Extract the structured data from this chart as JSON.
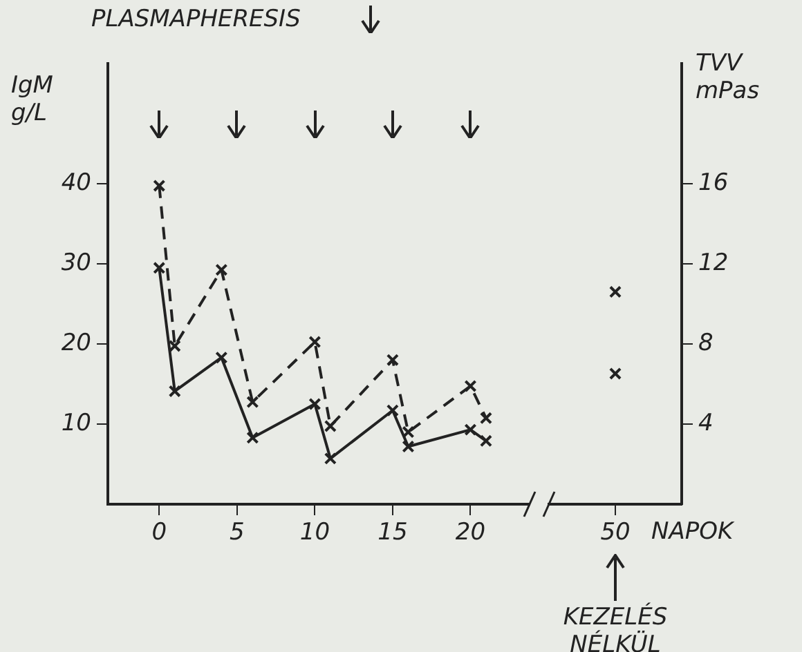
{
  "chart_data": [
    {
      "type": "line",
      "ylabel": "IgM g/L",
      "x": [
        0,
        1,
        4,
        6,
        10,
        11,
        15,
        16,
        20,
        21
      ],
      "series": [
        {
          "color": "#222222",
          "line_style": "solid",
          "values": [
            29.5,
            14.1,
            18.3,
            8.3,
            12.5,
            5.7,
            11.7,
            7.2,
            9.3,
            7.9
          ]
        },
        {
          "color": "#222222",
          "line_style": "dashed",
          "axis": "y2",
          "values": [
            15.9,
            7.9,
            11.7,
            5.1,
            8.1,
            3.9,
            7.2,
            3.6,
            5.9,
            4.3
          ]
        }
      ],
      "xlim": [
        -3.3,
        23.8
      ],
      "xticks": [
        0,
        5,
        10,
        15,
        20
      ],
      "ylim": [
        0,
        55
      ],
      "yticks": [
        10,
        20,
        30,
        40
      ],
      "y2lim": [
        0,
        22
      ],
      "tick_labels": "xy",
      "marker": "cross",
      "grid": false,
      "legend": false,
      "annotations": [
        "PLASMAPHERESIS"
      ]
    },
    {
      "type": "line",
      "xlabel": "NAPOK",
      "y2label": "TVV mPas",
      "categories": [
        "50"
      ],
      "series": [
        {
          "color": "#222222",
          "line_style": "solid",
          "values": [
            16.3
          ]
        },
        {
          "color": "#222222",
          "line_style": "dashed",
          "axis": "y2",
          "values": [
            10.6
          ]
        }
      ],
      "ylim": [
        0,
        55
      ],
      "y2lim": [
        0,
        22
      ],
      "y2ticks": [
        4,
        8,
        12,
        16
      ],
      "tick_labels": "xy2",
      "marker": "cross",
      "grid": false,
      "legend": false,
      "annotations": [
        "KEZELÉS NÉLKÜL"
      ]
    }
  ]
}
